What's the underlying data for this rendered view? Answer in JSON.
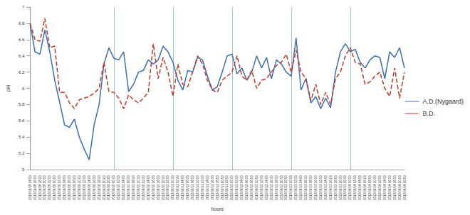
{
  "chart_data": {
    "type": "line",
    "x_label": "hours",
    "y_label": "pH",
    "categories": [
      "2012/06/08 14:00",
      "2012/06/08 16:00",
      "2012/06/08 18:00",
      "2012/06/08 20:00",
      "2012/06/08 22:00",
      "2012/06/09 00:00",
      "2012/06/09 02:00",
      "2012/06/09 04:00",
      "2012/06/09 06:00",
      "2012/06/09 08:00",
      "2012/06/09 10:00",
      "2012/06/09 12:00",
      "2012/06/09 14:00",
      "2012/06/09 16:00",
      "2012/06/09 18:00",
      "2012/06/09 20:00",
      "2012/06/09 22:00",
      "2012/06/10 00:00",
      "2012/06/10 02:00",
      "2012/06/10 04:00",
      "2012/06/10 06:00",
      "2012/06/10 08:00",
      "2012/06/10 10:00",
      "2012/06/10 12:00",
      "2012/06/10 14:00",
      "2012/06/10 16:00",
      "2012/06/10 18:00",
      "2012/06/10 20:00",
      "2012/06/10 22:00",
      "2012/06/11 00:00",
      "2012/06/11 02:00",
      "2012/06/11 04:00",
      "2012/06/11 06:00",
      "2012/06/11 08:00",
      "2012/06/11 10:00",
      "2012/06/11 12:00",
      "2012/06/11 14:00",
      "2012/06/11 16:00",
      "2012/06/11 18:00",
      "2012/06/11 20:00",
      "2012/06/11 22:00",
      "2012/06/12 00:00",
      "2012/06/12 02:00",
      "2012/06/12 04:00",
      "2012/06/12 06:00",
      "2012/06/12 08:00",
      "2012/06/12 10:00",
      "2012/06/12 12:00",
      "2012/06/12 14:00",
      "2012/06/12 16:00",
      "2012/06/12 18:00",
      "2012/06/12 20:00",
      "2012/06/12 22:00",
      "2012/06/13 00:00",
      "2012/06/13 02:00",
      "2012/06/13 04:00",
      "2012/06/13 06:00",
      "2012/06/13 08:00",
      "2012/06/13 10:00",
      "2012/06/13 12:00",
      "2012/06/13 14:00",
      "2012/06/13 16:00",
      "2012/06/13 18:00",
      "2012/06/13 20:00",
      "2012/06/13 22:00",
      "2012/06/14 00:00",
      "2012/06/14 02:00",
      "2012/06/14 04:00",
      "2012/06/14 06:00",
      "2012/06/14 08:00",
      "2012/06/14 10:00",
      "2012/06/14 12:00",
      "2012/06/14 14:00",
      "2012/06/14 16:00",
      "2012/06/14 18:00",
      "2012/06/14 20:00",
      "2012/06/14 22:00"
    ],
    "series": [
      {
        "name": "A.D.(Nygaard)",
        "color": "#3a6fb0",
        "line_style": "solid",
        "values": [
          6.8,
          6.45,
          6.42,
          6.72,
          6.45,
          6.1,
          5.83,
          5.55,
          5.52,
          5.62,
          5.4,
          5.25,
          5.12,
          5.55,
          5.8,
          6.3,
          6.5,
          6.37,
          6.35,
          6.45,
          5.96,
          6.05,
          6.2,
          6.22,
          6.35,
          6.3,
          6.35,
          6.52,
          6.45,
          6.32,
          6.1,
          5.98,
          6.22,
          6.2,
          6.38,
          6.35,
          6.15,
          5.98,
          6.02,
          6.2,
          6.4,
          6.42,
          6.18,
          6.25,
          6.1,
          6.2,
          6.4,
          6.25,
          6.38,
          6.12,
          6.35,
          6.3,
          6.2,
          6.15,
          6.62,
          5.98,
          6.12,
          5.82,
          5.9,
          5.75,
          5.88,
          5.76,
          6.2,
          6.45,
          6.55,
          6.45,
          6.48,
          6.32,
          6.25,
          6.35,
          6.4,
          6.38,
          6.12,
          6.45,
          6.38,
          6.5,
          6.25
        ]
      },
      {
        "name": "B.D.",
        "color": "#c0392b",
        "line_style": "dashed",
        "values": [
          6.8,
          6.6,
          6.58,
          6.86,
          6.5,
          6.52,
          5.95,
          5.95,
          5.82,
          5.75,
          5.86,
          5.88,
          5.9,
          5.94,
          6.0,
          6.32,
          5.96,
          5.95,
          5.88,
          5.75,
          5.92,
          5.86,
          5.82,
          5.88,
          5.95,
          6.55,
          6.12,
          6.38,
          6.2,
          5.9,
          6.3,
          6.05,
          6.02,
          6.2,
          6.4,
          6.3,
          6.1,
          5.98,
          5.95,
          6.1,
          6.15,
          6.2,
          6.4,
          6.15,
          6.1,
          6.22,
          6.0,
          6.1,
          6.12,
          6.2,
          6.28,
          6.32,
          6.42,
          6.2,
          6.47,
          6.2,
          6.12,
          5.85,
          6.05,
          5.8,
          5.95,
          5.8,
          6.12,
          6.2,
          6.4,
          6.5,
          6.32,
          6.3,
          6.05,
          6.08,
          6.15,
          6.2,
          6.0,
          5.9,
          6.25,
          5.88,
          6.2
        ]
      }
    ],
    "ylim": [
      5,
      7
    ],
    "yticks": [
      5,
      5.2,
      5.4,
      5.6,
      5.8,
      6,
      6.2,
      6.4,
      6.6,
      6.8,
      7
    ],
    "grid": true,
    "legend": "right"
  }
}
